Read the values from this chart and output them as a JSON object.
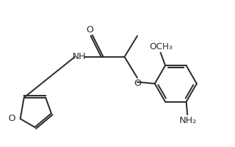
{
  "line_color": "#2d2d2d",
  "bg_color": "#ffffff",
  "line_width": 1.5,
  "font_size": 9.5,
  "fig_width": 3.34,
  "fig_height": 2.09,
  "xlim": [
    0,
    10
  ],
  "ylim": [
    0,
    6.27
  ]
}
